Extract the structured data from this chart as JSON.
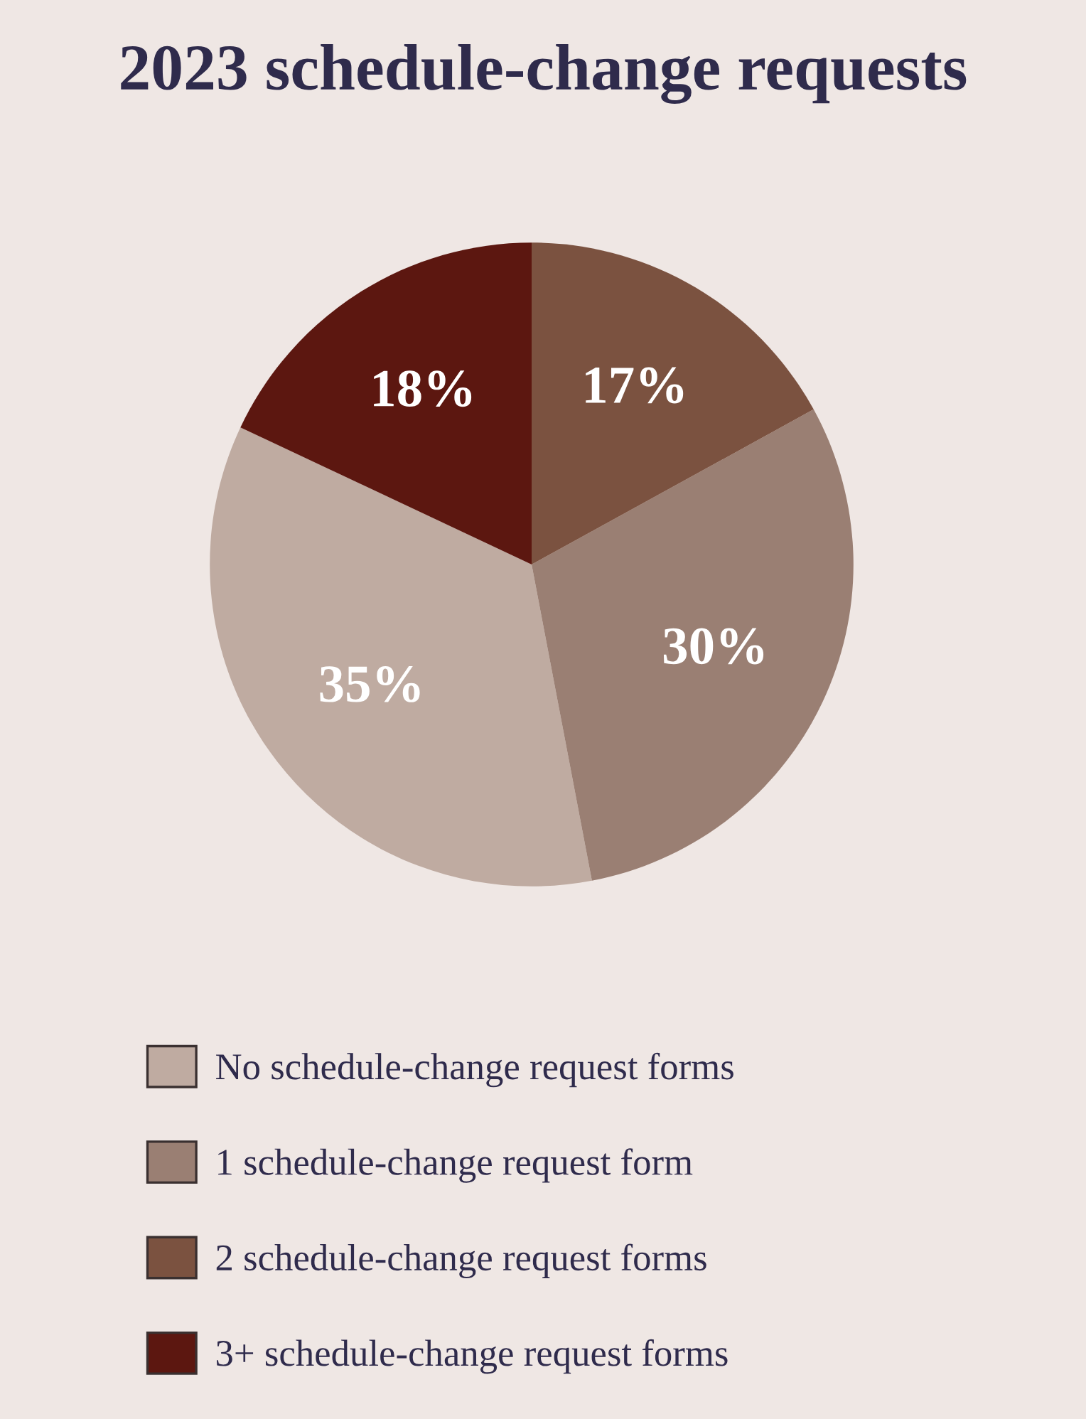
{
  "chart_data": {
    "type": "pie",
    "title": "2023 schedule-change requests",
    "categories": [
      "No schedule-change request forms",
      "1 schedule-change request form",
      "2 schedule-change request forms",
      "3+ schedule-change request forms"
    ],
    "values": [
      35,
      30,
      17,
      18
    ],
    "colors": [
      "#bfaba1",
      "#9a7f73",
      "#7b5240",
      "#5c1710"
    ],
    "value_labels": [
      "35%",
      "30%",
      "17%",
      "18%"
    ],
    "legend": "bottom"
  }
}
